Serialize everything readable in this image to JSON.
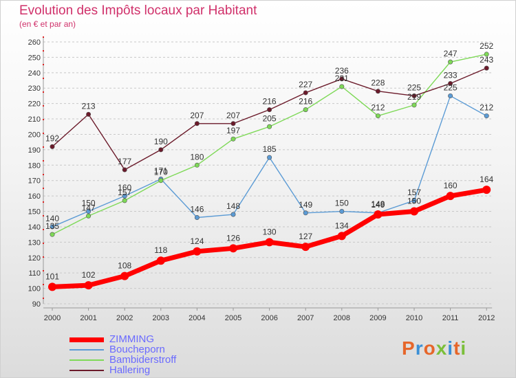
{
  "header": {
    "title": "Evolution des Impôts locaux par Habitant",
    "subtitle": "(en € et par an)"
  },
  "logo": {
    "text": "Proxiti",
    "colors": [
      "#e6662a",
      "#3a8fd6",
      "#e6662a",
      "#7bbf3a",
      "#3a8fd6",
      "#e6662a",
      "#7bbf3a"
    ]
  },
  "chart_data": {
    "type": "line",
    "title": "Evolution des Impôts locaux par Habitant",
    "subtitle": "(en € et par an)",
    "xlabel": "",
    "ylabel": "",
    "x": [
      "2000",
      "2001",
      "2002",
      "2003",
      "2004",
      "2005",
      "2006",
      "2007",
      "2008",
      "2009",
      "2010",
      "2011",
      "2012"
    ],
    "ylim": [
      90,
      260
    ],
    "yticks": [
      90,
      100,
      110,
      120,
      130,
      140,
      150,
      160,
      170,
      180,
      190,
      200,
      210,
      220,
      230,
      240,
      250,
      260
    ],
    "grid": "horizontal dashed",
    "legend_position": "bottom-left",
    "series": [
      {
        "name": "ZIMMING",
        "color": "#ff0000",
        "bold": true,
        "values": [
          101,
          102,
          108,
          118,
          124,
          126,
          130,
          127,
          134,
          148,
          150,
          160,
          164
        ]
      },
      {
        "name": "Boucheporn",
        "color": "#5b9bd5",
        "bold": false,
        "values": [
          140,
          150,
          160,
          171,
          146,
          148,
          185,
          149,
          150,
          149,
          157,
          225,
          212
        ]
      },
      {
        "name": "Bambiderstroff",
        "color": "#7ed957",
        "bold": false,
        "values": [
          135,
          147,
          157,
          170,
          180,
          197,
          205,
          216,
          231,
          212,
          219,
          247,
          252
        ]
      },
      {
        "name": "Hallering",
        "color": "#6b1a2a",
        "bold": false,
        "values": [
          192,
          213,
          177,
          190,
          207,
          207,
          216,
          227,
          236,
          228,
          225,
          233,
          243
        ]
      }
    ]
  }
}
